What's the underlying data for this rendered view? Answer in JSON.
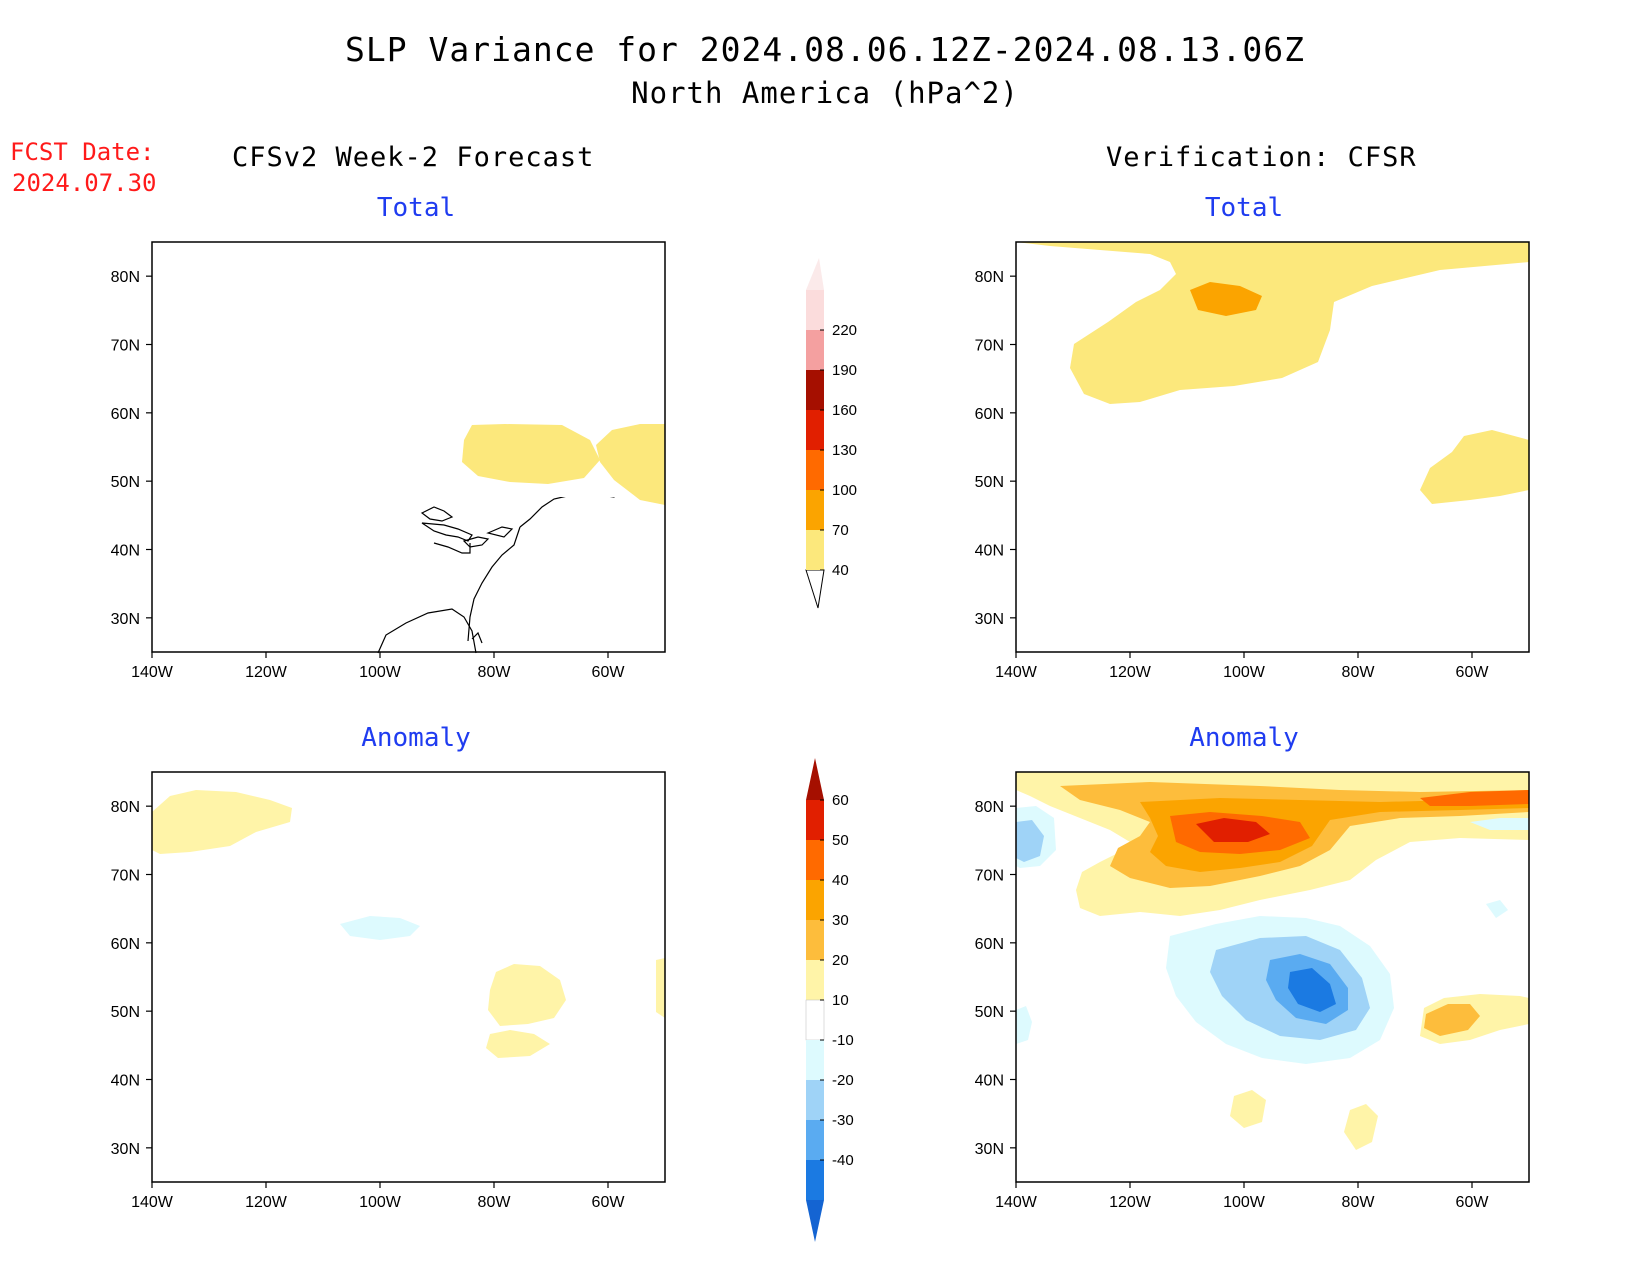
{
  "header": {
    "title": "SLP Variance for 2024.08.06.12Z-2024.08.13.06Z",
    "subtitle": "North America (hPa^2)",
    "fcst_label": "FCST Date:",
    "fcst_date": "2024.07.30"
  },
  "columns": {
    "left": "CFSv2 Week-2 Forecast",
    "right": "Verification: CFSR"
  },
  "panels": {
    "fcst_total": "Total",
    "fcst_anom": "Anomaly",
    "ver_total": "Total",
    "ver_anom": "Anomaly"
  },
  "axes": {
    "lat_ticks": [
      "80N",
      "70N",
      "60N",
      "50N",
      "40N",
      "30N"
    ],
    "lon_ticks": [
      "140W",
      "120W",
      "100W",
      "80W",
      "60W"
    ],
    "lat_range": [
      25,
      85
    ],
    "lon_range": [
      -140,
      -50
    ]
  },
  "colorbars": {
    "total": {
      "levels": [
        "40",
        "70",
        "100",
        "130",
        "160",
        "190",
        "220"
      ],
      "colors": [
        "#fce87c",
        "#fba400",
        "#ff6a00",
        "#e11f00",
        "#a50f00",
        "#f4a0a0",
        "#fbdcdc"
      ]
    },
    "anomaly": {
      "levels": [
        "60",
        "50",
        "40",
        "30",
        "20",
        "10",
        "-10",
        "-20",
        "-30",
        "-40"
      ],
      "colors": [
        "#a50f00",
        "#e11f00",
        "#ff6a00",
        "#fba400",
        "#fdbd3c",
        "#fff4a8",
        "#ffffff",
        "#ddfafe",
        "#9fd3f7",
        "#5aabf1",
        "#1b7ae2",
        "#1464d2"
      ]
    }
  }
}
